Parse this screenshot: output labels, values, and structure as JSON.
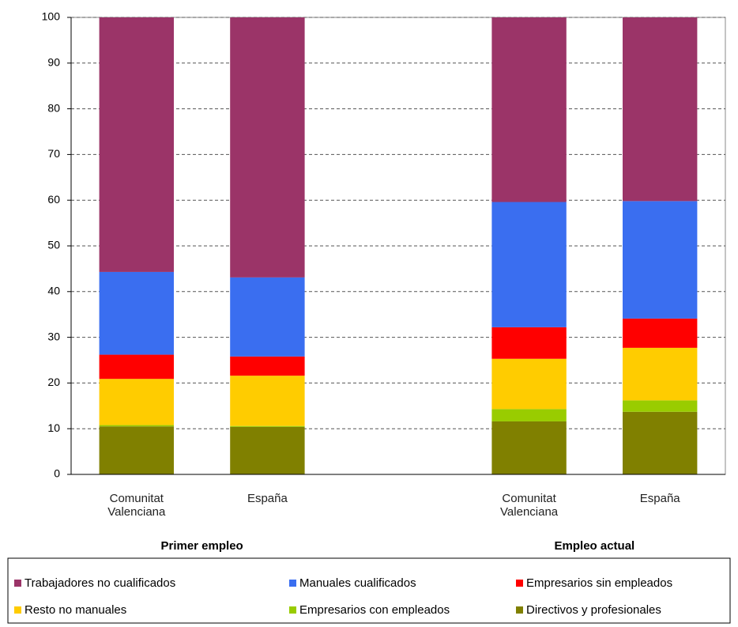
{
  "chart_data": {
    "type": "stacked_bar",
    "categories": [
      "Comunitat Valenciana",
      "España",
      null,
      "Comunitat Valenciana",
      "España"
    ],
    "group_labels": [
      "Primer empleo",
      "Empleo actual"
    ],
    "series": [
      {
        "name": "Trabajadores no cualificados",
        "color": "#9b3468",
        "values": [
          55.7,
          56.9,
          null,
          40.4,
          40.2
        ]
      },
      {
        "name": "Manuales cualificados",
        "color": "#3a6ef0",
        "values": [
          18.1,
          17.3,
          null,
          27.4,
          25.7
        ]
      },
      {
        "name": "Empresarios sin empleados",
        "color": "#ff0000",
        "values": [
          5.3,
          4.2,
          null,
          6.9,
          6.4
        ]
      },
      {
        "name": "Resto no manuales",
        "color": "#ffcc00",
        "values": [
          10.1,
          11.0,
          null,
          11.0,
          11.5
        ]
      },
      {
        "name": "Empresarios con empleados",
        "color": "#99cc00",
        "values": [
          0.3,
          0.2,
          null,
          2.7,
          2.5
        ]
      },
      {
        "name": "Directivos y profesionales",
        "color": "#808000",
        "values": [
          10.5,
          10.4,
          null,
          11.6,
          13.7
        ]
      }
    ],
    "ylim": [
      0,
      100
    ],
    "yticks": [
      0,
      10,
      20,
      30,
      40,
      50,
      60,
      70,
      80,
      90,
      100
    ],
    "grid": true,
    "legend": "bottom"
  }
}
